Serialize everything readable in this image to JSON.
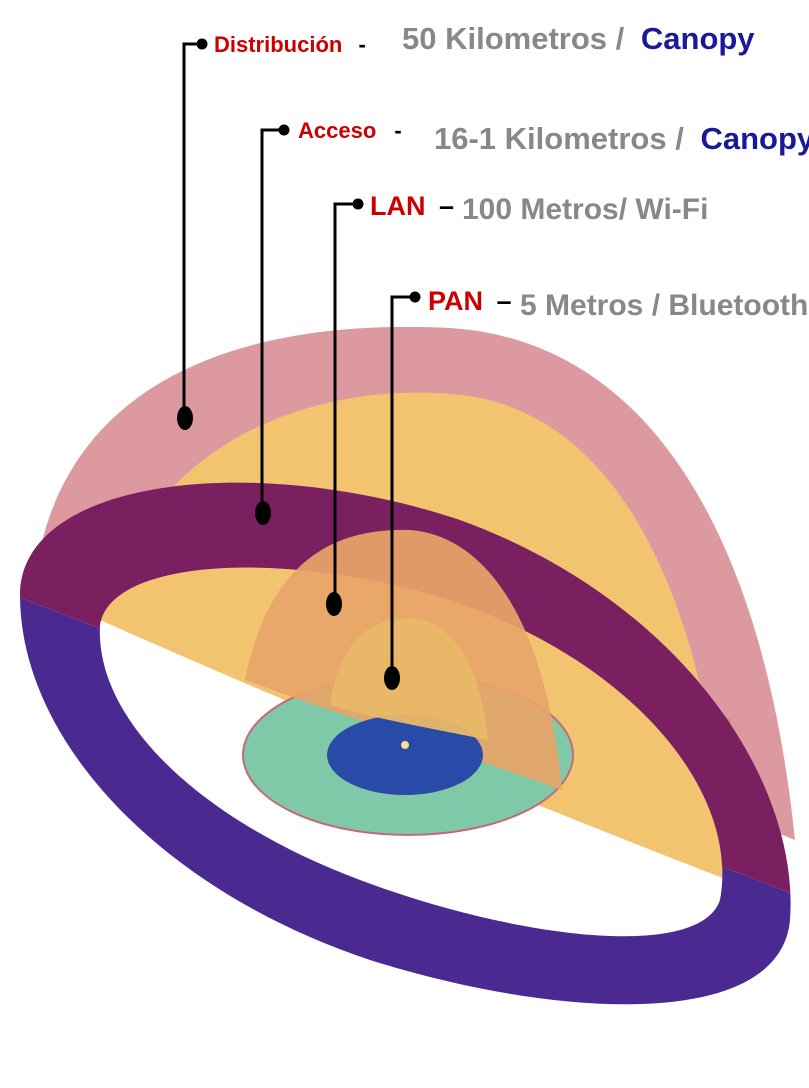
{
  "layers": [
    {
      "key": "distribucion",
      "name": "Distribución",
      "dash": "-",
      "range": "50 Kilometros /",
      "tech": "Canopy"
    },
    {
      "key": "acceso",
      "name": "Acceso",
      "dash": "-",
      "range": "16-1 Kilometros /",
      "tech": "Canopy"
    },
    {
      "key": "lan",
      "name": "LAN",
      "dash": "–",
      "range": "100 Metros/ Wi-Fi",
      "tech": ""
    },
    {
      "key": "pan",
      "name": "PAN",
      "dash": "–",
      "range": "5 Metros / Bluetooth",
      "tech": ""
    }
  ],
  "colors": {
    "name_text": "#cc0000",
    "range_text": "#888888",
    "tech_text": "#1a1a99",
    "distribucion_dome": "#dc9aa0",
    "distribucion_ring": "#4a2a90",
    "acceso_dome": "#f2c470",
    "acceso_band": "#c48a5e",
    "lan_dome": "#e8a468",
    "lan_disc": "#7fc8a8",
    "pan_dome": "#e8b868",
    "pan_disc": "#2a4aa8",
    "leader": "#000000"
  }
}
